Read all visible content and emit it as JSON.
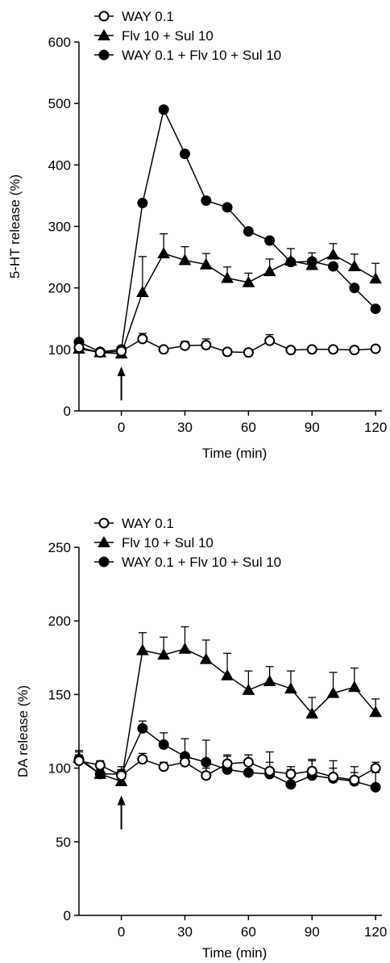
{
  "chart_data": [
    {
      "type": "line",
      "title": "",
      "xlabel": "Time (min)",
      "ylabel": "5-HT release (%)",
      "xlim": [
        -20,
        123
      ],
      "ylim": [
        0,
        600
      ],
      "xticks": [
        0,
        30,
        60,
        90,
        120
      ],
      "yticks": [
        0,
        100,
        200,
        300,
        400,
        500,
        600
      ],
      "x": [
        -20,
        -10,
        0,
        10,
        20,
        30,
        40,
        50,
        60,
        70,
        80,
        90,
        100,
        110,
        120
      ],
      "grid": false,
      "legend_position": "top-left",
      "arrow_at_x": 0,
      "series": [
        {
          "name": "WAY 0.1",
          "marker": "open-circle",
          "values": [
            103,
            95,
            97,
            117,
            100,
            106,
            107,
            96,
            95,
            114,
            99,
            100,
            100,
            99,
            101
          ],
          "errors": [
            6,
            4,
            5,
            9,
            4,
            7,
            10,
            4,
            5,
            10,
            4,
            4,
            4,
            4,
            5
          ]
        },
        {
          "name": "Flv 10 + Sul 10",
          "marker": "filled-triangle",
          "values": [
            101,
            95,
            93,
            193,
            256,
            245,
            238,
            216,
            209,
            227,
            244,
            237,
            254,
            235,
            215
          ],
          "errors": [
            8,
            5,
            8,
            58,
            32,
            22,
            18,
            18,
            15,
            20,
            20,
            20,
            18,
            20,
            25
          ]
        },
        {
          "name": "WAY 0.1 + Flv 10 + Sul 10",
          "marker": "filled-circle",
          "values": [
            112,
            96,
            100,
            338,
            490,
            418,
            342,
            331,
            292,
            277,
            242,
            243,
            235,
            200,
            166
          ]
        }
      ]
    },
    {
      "type": "line",
      "title": "",
      "xlabel": "Time (min)",
      "ylabel": "DA release (%)",
      "xlim": [
        -20,
        123
      ],
      "ylim": [
        0,
        250
      ],
      "xticks": [
        0,
        30,
        60,
        90,
        120
      ],
      "yticks": [
        0,
        50,
        100,
        150,
        200,
        250
      ],
      "x": [
        -20,
        -10,
        0,
        10,
        20,
        30,
        40,
        50,
        60,
        70,
        80,
        90,
        100,
        110,
        120
      ],
      "grid": false,
      "legend_position": "top-left",
      "arrow_at_x": 0,
      "series": [
        {
          "name": "WAY 0.1",
          "marker": "open-circle",
          "values": [
            105,
            102,
            95,
            106,
            101,
            104,
            95,
            103,
            104,
            98,
            96,
            98,
            94,
            92,
            100
          ],
          "errors": [
            4,
            3,
            4,
            4,
            3,
            5,
            5,
            5,
            5,
            6,
            5,
            8,
            6,
            5,
            4
          ]
        },
        {
          "name": "Flv 10 + Sul 10",
          "marker": "filled-triangle",
          "values": [
            107,
            96,
            91,
            180,
            177,
            181,
            174,
            163,
            153,
            159,
            154,
            137,
            151,
            155,
            138
          ],
          "errors": [
            5,
            4,
            4,
            12,
            12,
            15,
            13,
            15,
            13,
            10,
            12,
            11,
            14,
            13,
            9
          ]
        },
        {
          "name": "WAY 0.1 + Flv 10 + Sul 10",
          "marker": "filled-circle",
          "values": [
            106,
            96,
            96,
            127,
            116,
            108,
            104,
            99,
            97,
            96,
            89,
            95,
            93,
            91,
            87
          ],
          "errors": [
            5,
            3,
            5,
            5,
            8,
            12,
            15,
            10,
            12,
            15,
            10,
            10,
            12,
            10,
            10
          ]
        }
      ]
    }
  ]
}
